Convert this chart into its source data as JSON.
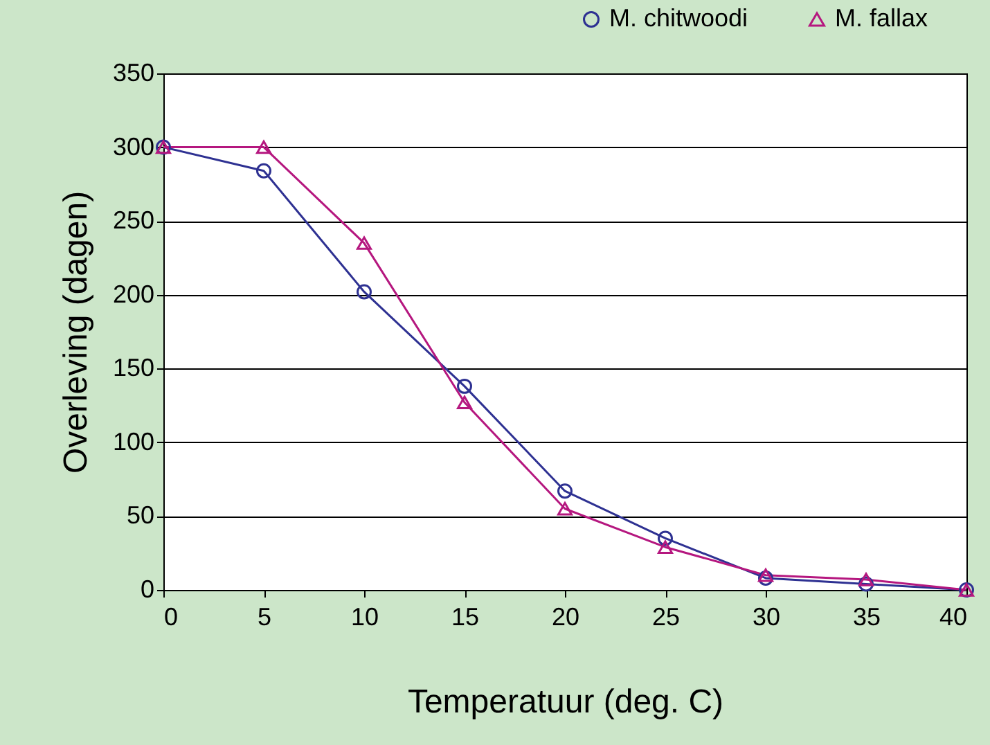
{
  "chart_data": {
    "type": "line",
    "xlabel": "Temperatuur (deg. C)",
    "ylabel": "Overleving (dagen)",
    "x": [
      0,
      5,
      10,
      15,
      20,
      25,
      30,
      35,
      40
    ],
    "series": [
      {
        "name": "M. chitwoodi",
        "color": "#2e3192",
        "marker": "circle",
        "values": [
          300,
          284,
          202,
          138,
          67,
          35,
          8,
          4,
          0
        ]
      },
      {
        "name": "M. fallax",
        "color": "#b5177f",
        "marker": "triangle",
        "values": [
          300,
          300,
          235,
          127,
          55,
          29,
          10,
          7,
          0
        ]
      }
    ],
    "xlim": [
      0,
      40
    ],
    "xticks": [
      0,
      5,
      10,
      15,
      20,
      25,
      30,
      35,
      40
    ],
    "ylim": [
      0,
      350
    ],
    "yticks": [
      0,
      50,
      100,
      150,
      200,
      250,
      300,
      350
    ],
    "grid": "y",
    "legend": "top right",
    "line_style": "solid"
  }
}
